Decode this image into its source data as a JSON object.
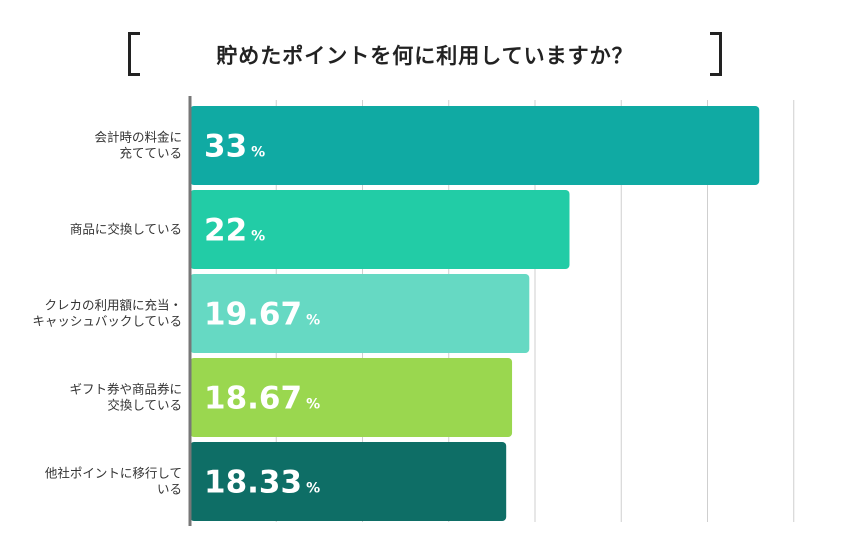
{
  "chart_data": {
    "type": "bar",
    "orientation": "horizontal",
    "title": "貯めたポイントを何に利用していますか？",
    "categories": [
      [
        "会計時の料金に",
        "充てている"
      ],
      [
        "商品に交換している"
      ],
      [
        "クレカの利用額に充当・",
        "キャッシュバックしている"
      ],
      [
        "ギフト券や商品券に",
        "交換している"
      ],
      [
        "他社ポイントに移行して",
        "いる"
      ]
    ],
    "values": [
      33,
      22,
      19.67,
      18.67,
      18.33
    ],
    "value_labels": [
      "33",
      "22",
      "19.67",
      "18.67",
      "18.33"
    ],
    "unit": "%",
    "colors": [
      "#10aaa3",
      "#22cca6",
      "#66d9c3",
      "#9ad74f",
      "#0e6e66"
    ],
    "xlim": [
      0,
      35
    ],
    "grid": true,
    "legend": "none"
  }
}
